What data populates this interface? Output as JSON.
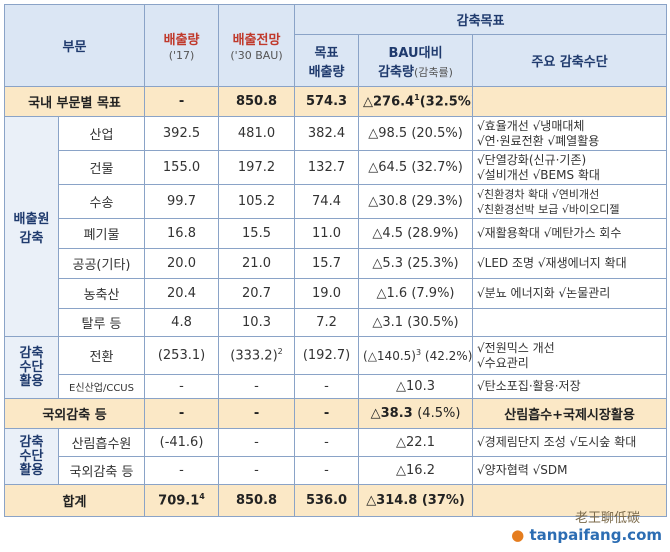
{
  "header": {
    "sector": "부문",
    "emission": "배출량",
    "emission_year": "('17)",
    "forecast": "배출전망",
    "forecast_year": "('30 BAU)",
    "reduction_goal": "감축목표",
    "target_emission": "목표\n배출량",
    "bau_reduction": "BAU대비",
    "bau_reduction2": "감축량",
    "bau_reduction_rate": "(감축률)",
    "major_means": "주요 감축수단"
  },
  "rows": [
    {
      "key": "domestic_total",
      "label": "국내 부문별 목표",
      "e17": "-",
      "bau": "850.8",
      "target": "574.3",
      "cut": "△276.4",
      "cut_sup": "1",
      "rate": "(32.5%)",
      "means": ""
    },
    {
      "key": "industry",
      "label": "산업",
      "e17": "392.5",
      "bau": "481.0",
      "target": "382.4",
      "cut": "△98.5",
      "cut_sup": "",
      "rate": "(20.5%)",
      "means": "√효율개선 √냉매대체\n√연·원료전환 √폐열활용"
    },
    {
      "key": "building",
      "label": "건물",
      "e17": "155.0",
      "bau": "197.2",
      "target": "132.7",
      "cut": "△64.5",
      "cut_sup": "",
      "rate": "(32.7%)",
      "means": "√단열강화(신규·기존)\n√설비개선 √BEMS 확대"
    },
    {
      "key": "transport",
      "label": "수송",
      "e17": "99.7",
      "bau": "105.2",
      "target": "74.4",
      "cut": "△30.8",
      "cut_sup": "",
      "rate": "(29.3%)",
      "means": "√친환경차 확대 √연비개선\n√친환경선박 보급 √바이오디젤"
    },
    {
      "key": "waste",
      "label": "폐기물",
      "e17": "16.8",
      "bau": "15.5",
      "target": "11.0",
      "cut": "△4.5",
      "cut_sup": "",
      "rate": "(28.9%)",
      "means": "√재활용확대 √메탄가스 회수"
    },
    {
      "key": "public",
      "label": "공공(기타)",
      "e17": "20.0",
      "bau": "21.0",
      "target": "15.7",
      "cut": "△5.3",
      "cut_sup": "",
      "rate": "(25.3%)",
      "means": "√LED 조명 √재생에너지 확대"
    },
    {
      "key": "agriculture",
      "label": "농축산",
      "e17": "20.4",
      "bau": "20.7",
      "target": "19.0",
      "cut": "△1.6",
      "cut_sup": "",
      "rate": "(7.9%)",
      "means": "√분뇨 에너지화 √논물관리"
    },
    {
      "key": "fugitive",
      "label": "탈루 등",
      "e17": "4.8",
      "bau": "10.3",
      "target": "7.2",
      "cut": "△3.1",
      "cut_sup": "",
      "rate": "(30.5%)",
      "means": ""
    },
    {
      "key": "conversion",
      "label": "전환",
      "e17": "(253.1)",
      "bau": "(333.2)",
      "bau_sup": "2",
      "target": "(192.7)",
      "cut": "(△140.5)",
      "cut_sup": "3",
      "rate": "(42.2%)",
      "means": "√전원믹스 개선\n√수요관리"
    },
    {
      "key": "ccus",
      "label": "E신산업/CCUS",
      "e17": "-",
      "bau": "-",
      "target": "-",
      "cut": "△10.3",
      "cut_sup": "",
      "rate": "",
      "means": "√탄소포집·활용·저장"
    },
    {
      "key": "overseas",
      "label": "국외감축 등",
      "e17": "-",
      "bau": "-",
      "target": "-",
      "cut": "△38.3",
      "cut_sup": "",
      "rate": "(4.5%)",
      "means": "산림흡수+국제시장활용"
    },
    {
      "key": "forest",
      "label": "산림흡수원",
      "e17": "(-41.6)",
      "bau": "-",
      "target": "-",
      "cut": "△22.1",
      "cut_sup": "",
      "rate": "",
      "means": "√경제림단지 조성 √도시숲 확대"
    },
    {
      "key": "intl",
      "label": "국외감축 등",
      "e17": "-",
      "bau": "-",
      "target": "-",
      "cut": "△16.2",
      "cut_sup": "",
      "rate": "",
      "means": "√양자협력 √SDM"
    },
    {
      "key": "total",
      "label": "합계",
      "e17": "709.1",
      "e17_sup": "4",
      "bau": "850.8",
      "target": "536.0",
      "cut": "△314.8",
      "cut_sup": "",
      "rate": "(37%)",
      "means": ""
    }
  ],
  "groups": {
    "emission_source": "배출원\n감축",
    "means_use1": "감축\n수단\n활용",
    "means_use2": "감축\n수단\n활용"
  },
  "watermark": {
    "cn": "老王聊低碳",
    "site": "tanpaifang.com",
    "dot": "●"
  }
}
